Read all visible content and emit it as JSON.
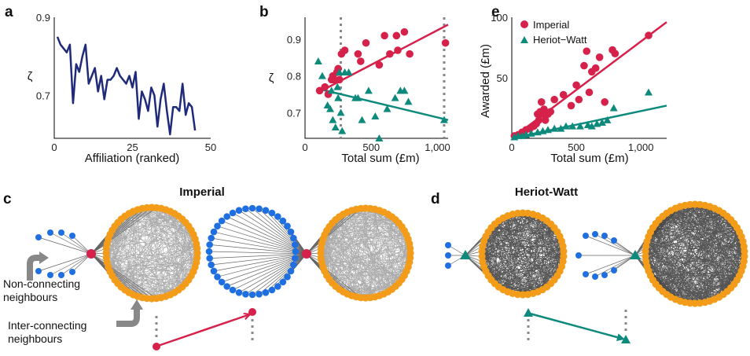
{
  "panels": {
    "a": "a",
    "b": "b",
    "c": "c",
    "d": "d",
    "e": "e"
  },
  "chart_data": [
    {
      "id": "a",
      "type": "line",
      "xlabel": "Affiliation (ranked)",
      "ylabel": "ζ",
      "xlim": [
        0,
        50
      ],
      "ylim": [
        0.59,
        0.9
      ],
      "xticks": [
        "0",
        "25",
        "50"
      ],
      "yticks": [
        "0.9",
        "0.7"
      ],
      "color": "#1f2a7a",
      "x": [
        1,
        2,
        3,
        4,
        5,
        6,
        7,
        8,
        9,
        10,
        11,
        12,
        13,
        14,
        15,
        16,
        17,
        18,
        19,
        20,
        21,
        22,
        23,
        24,
        25,
        26,
        27,
        28,
        29,
        30,
        31,
        32,
        33,
        34,
        35,
        36,
        37,
        38,
        39,
        40,
        41,
        42,
        43,
        44,
        45
      ],
      "y": [
        0.85,
        0.83,
        0.82,
        0.81,
        0.83,
        0.68,
        0.78,
        0.76,
        0.8,
        0.83,
        0.73,
        0.75,
        0.77,
        0.71,
        0.75,
        0.69,
        0.74,
        0.74,
        0.75,
        0.77,
        0.75,
        0.74,
        0.73,
        0.75,
        0.72,
        0.76,
        0.64,
        0.71,
        0.69,
        0.66,
        0.72,
        0.7,
        0.62,
        0.69,
        0.73,
        0.66,
        0.6,
        0.67,
        0.67,
        0.66,
        0.73,
        0.65,
        0.68,
        0.67,
        0.61
      ]
    },
    {
      "id": "b",
      "type": "scatter",
      "xlabel": "Total sum (£m)",
      "ylabel": "ζ",
      "xlim": [
        0,
        1080
      ],
      "ylim": [
        0.63,
        0.96
      ],
      "xticks": [
        "0",
        "500",
        "1,000"
      ],
      "yticks": [
        "0.9",
        "0.8",
        "0.7"
      ],
      "vlines": [
        270,
        1050
      ],
      "series": [
        {
          "name": "Imperial",
          "color": "#d6224a",
          "marker": "circle",
          "x": [
            110,
            150,
            175,
            200,
            210,
            220,
            240,
            250,
            260,
            275,
            300,
            400,
            420,
            460,
            560,
            600,
            640,
            690,
            700,
            750,
            790,
            1060
          ],
          "y": [
            0.76,
            0.77,
            0.75,
            0.79,
            0.8,
            0.79,
            0.81,
            0.82,
            0.79,
            0.86,
            0.87,
            0.86,
            0.84,
            0.89,
            0.83,
            0.91,
            0.86,
            0.91,
            0.87,
            0.92,
            0.86,
            0.89
          ],
          "fit": [
            [
              100,
              0.755
            ],
            [
              1080,
              0.94
            ]
          ]
        },
        {
          "name": "Heriot-Watt",
          "color": "#0e8a7d",
          "marker": "triangle",
          "x": [
            100,
            130,
            170,
            190,
            200,
            210,
            230,
            245,
            250,
            260,
            270,
            280,
            300,
            330,
            380,
            400,
            430,
            480,
            530,
            560,
            620,
            680,
            720,
            750,
            780,
            1050
          ],
          "y": [
            0.84,
            0.8,
            0.72,
            0.71,
            0.76,
            0.68,
            0.66,
            0.77,
            0.74,
            0.81,
            0.7,
            0.65,
            0.81,
            0.81,
            0.74,
            0.74,
            0.68,
            0.76,
            0.69,
            0.63,
            0.71,
            0.74,
            0.76,
            0.76,
            0.73,
            0.68
          ],
          "fit": [
            [
              100,
              0.765
            ],
            [
              1080,
              0.68
            ]
          ]
        }
      ]
    },
    {
      "id": "e",
      "type": "scatter",
      "xlabel": "Total sum (£m)",
      "ylabel": "Awarded (£m)",
      "xlim": [
        0,
        1200
      ],
      "ylim": [
        0,
        100
      ],
      "xticks": [
        "0",
        "500",
        "1,000"
      ],
      "yticks": [
        "100",
        "50"
      ],
      "legend": {
        "position": "top-left",
        "entries": [
          "Imperial",
          "Heriot−Watt"
        ]
      },
      "series": [
        {
          "name": "Imperial",
          "color": "#d6224a",
          "marker": "circle",
          "x": [
            20,
            50,
            80,
            110,
            140,
            170,
            190,
            200,
            210,
            220,
            230,
            240,
            250,
            260,
            280,
            300,
            330,
            400,
            460,
            500,
            520,
            560,
            580,
            600,
            620,
            650,
            680,
            720,
            780,
            800,
            1060
          ],
          "y": [
            2,
            3,
            5,
            7,
            8,
            10,
            12,
            20,
            15,
            22,
            30,
            20,
            24,
            15,
            20,
            22,
            32,
            36,
            27,
            44,
            32,
            60,
            72,
            38,
            55,
            58,
            67,
            30,
            73,
            70,
            85
          ],
          "fit": [
            [
              0,
              0
            ],
            [
              1200,
              96
            ]
          ]
        },
        {
          "name": "Heriot−Watt",
          "color": "#0e8a7d",
          "marker": "triangle",
          "x": [
            20,
            50,
            80,
            110,
            150,
            200,
            240,
            280,
            330,
            380,
            420,
            470,
            530,
            590,
            620,
            660,
            700,
            740,
            790,
            1060
          ],
          "y": [
            1,
            2,
            2,
            3,
            4,
            5,
            6,
            7,
            8,
            8,
            10,
            10,
            10,
            11,
            10,
            12,
            13,
            15,
            25,
            38
          ],
          "fit": [
            [
              0,
              0
            ],
            [
              1200,
              27
            ]
          ]
        }
      ]
    }
  ],
  "networks": {
    "imperial_title": "Imperial",
    "heriot_title": "Heriot-Watt",
    "label_non_connecting": [
      "Non-connecting",
      "neighbours"
    ],
    "label_inter_connecting": [
      "Inter-connecting",
      "neighbours"
    ],
    "colors": {
      "hub_imperial": "#d6224a",
      "hub_heriot": "#0e8a7d",
      "neighbour": "#1f6fe0",
      "community": "#f39c1a",
      "edge": "#666666",
      "edge_dense": "#2b2b2b",
      "arrow": "#888888"
    }
  }
}
